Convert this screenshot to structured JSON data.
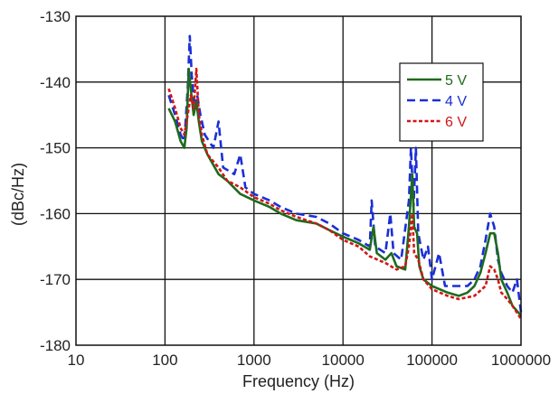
{
  "chart_data": {
    "type": "line",
    "xlabel": "Frequency (Hz)",
    "ylabel": "(dBc/Hz)",
    "x_scale": "log",
    "xlim": [
      10,
      1000000
    ],
    "ylim": [
      -180,
      -130
    ],
    "x_ticks": [
      10,
      100,
      1000,
      10000,
      100000,
      1000000
    ],
    "x_tick_labels": [
      "10",
      "100",
      "1000",
      "10000",
      "100000",
      "1000000"
    ],
    "y_ticks": [
      -130,
      -140,
      -150,
      -160,
      -170,
      -180
    ],
    "y_tick_labels": [
      "-130",
      "-140",
      "-150",
      "-160",
      "-170",
      "-180"
    ],
    "grid": "major, both axes",
    "legend_position": "top-right",
    "series": [
      {
        "name": "5 V",
        "color": "#1e6b1e",
        "dash": "solid",
        "points": [
          [
            110,
            -144
          ],
          [
            130,
            -146
          ],
          [
            150,
            -149
          ],
          [
            165,
            -150
          ],
          [
            175,
            -147
          ],
          [
            185,
            -138
          ],
          [
            195,
            -141
          ],
          [
            210,
            -145
          ],
          [
            225,
            -143
          ],
          [
            240,
            -146
          ],
          [
            260,
            -149
          ],
          [
            300,
            -151
          ],
          [
            400,
            -154
          ],
          [
            500,
            -155
          ],
          [
            700,
            -157
          ],
          [
            1000,
            -158
          ],
          [
            1500,
            -159
          ],
          [
            2000,
            -160
          ],
          [
            3000,
            -161
          ],
          [
            5000,
            -161.5
          ],
          [
            7000,
            -162.5
          ],
          [
            10000,
            -163.5
          ],
          [
            15000,
            -164.5
          ],
          [
            20000,
            -165.5
          ],
          [
            22000,
            -162
          ],
          [
            24000,
            -166
          ],
          [
            30000,
            -167
          ],
          [
            35000,
            -166
          ],
          [
            40000,
            -168
          ],
          [
            50000,
            -168.5
          ],
          [
            55000,
            -162
          ],
          [
            60000,
            -154
          ],
          [
            63000,
            -162
          ],
          [
            68000,
            -163
          ],
          [
            72000,
            -168
          ],
          [
            80000,
            -170
          ],
          [
            100000,
            -171
          ],
          [
            150000,
            -172
          ],
          [
            200000,
            -172.5
          ],
          [
            250000,
            -172
          ],
          [
            300000,
            -171
          ],
          [
            350000,
            -169
          ],
          [
            400000,
            -166
          ],
          [
            450000,
            -163
          ],
          [
            500000,
            -163
          ],
          [
            550000,
            -166
          ],
          [
            600000,
            -170
          ],
          [
            700000,
            -172
          ],
          [
            800000,
            -174
          ],
          [
            1000000,
            -175.5
          ]
        ]
      },
      {
        "name": "4 V",
        "color": "#1a2fd6",
        "dash": "dashed",
        "points": [
          [
            110,
            -142
          ],
          [
            130,
            -145
          ],
          [
            150,
            -148
          ],
          [
            165,
            -149
          ],
          [
            180,
            -141
          ],
          [
            190,
            -133
          ],
          [
            200,
            -139
          ],
          [
            215,
            -144
          ],
          [
            230,
            -142
          ],
          [
            250,
            -145
          ],
          [
            280,
            -148
          ],
          [
            350,
            -150
          ],
          [
            400,
            -146
          ],
          [
            450,
            -153
          ],
          [
            600,
            -154
          ],
          [
            700,
            -151
          ],
          [
            800,
            -156
          ],
          [
            1000,
            -157
          ],
          [
            1500,
            -158
          ],
          [
            2000,
            -159
          ],
          [
            3000,
            -160
          ],
          [
            5000,
            -160.5
          ],
          [
            7000,
            -161.5
          ],
          [
            10000,
            -163
          ],
          [
            15000,
            -164
          ],
          [
            20000,
            -165
          ],
          [
            21000,
            -158
          ],
          [
            23000,
            -165
          ],
          [
            30000,
            -166
          ],
          [
            34000,
            -160
          ],
          [
            37000,
            -166
          ],
          [
            45000,
            -167
          ],
          [
            55000,
            -158
          ],
          [
            58000,
            -150
          ],
          [
            62000,
            -159
          ],
          [
            66000,
            -150
          ],
          [
            70000,
            -163
          ],
          [
            80000,
            -167
          ],
          [
            90000,
            -165
          ],
          [
            100000,
            -170
          ],
          [
            120000,
            -166
          ],
          [
            140000,
            -171
          ],
          [
            200000,
            -171
          ],
          [
            250000,
            -171
          ],
          [
            300000,
            -170
          ],
          [
            350000,
            -168
          ],
          [
            400000,
            -164
          ],
          [
            450000,
            -160
          ],
          [
            500000,
            -162
          ],
          [
            550000,
            -167
          ],
          [
            600000,
            -169
          ],
          [
            700000,
            -171
          ],
          [
            800000,
            -172
          ],
          [
            900000,
            -170
          ],
          [
            1000000,
            -175
          ]
        ]
      },
      {
        "name": "6 V",
        "color": "#d11616",
        "dash": "dotted",
        "points": [
          [
            110,
            -141
          ],
          [
            130,
            -144
          ],
          [
            150,
            -147
          ],
          [
            165,
            -148
          ],
          [
            180,
            -145
          ],
          [
            195,
            -142
          ],
          [
            210,
            -144
          ],
          [
            225,
            -138
          ],
          [
            240,
            -145
          ],
          [
            260,
            -148
          ],
          [
            300,
            -151
          ],
          [
            400,
            -153
          ],
          [
            500,
            -155
          ],
          [
            700,
            -156
          ],
          [
            1000,
            -157.5
          ],
          [
            1500,
            -158.5
          ],
          [
            2000,
            -159.5
          ],
          [
            3000,
            -160.5
          ],
          [
            5000,
            -161.5
          ],
          [
            7000,
            -162.5
          ],
          [
            10000,
            -164
          ],
          [
            15000,
            -165
          ],
          [
            20000,
            -166.5
          ],
          [
            30000,
            -167.5
          ],
          [
            40000,
            -168.5
          ],
          [
            50000,
            -168
          ],
          [
            55000,
            -165
          ],
          [
            60000,
            -160
          ],
          [
            63000,
            -166
          ],
          [
            70000,
            -167
          ],
          [
            80000,
            -170
          ],
          [
            100000,
            -171.5
          ],
          [
            150000,
            -172.5
          ],
          [
            200000,
            -173
          ],
          [
            300000,
            -172.5
          ],
          [
            400000,
            -171
          ],
          [
            450000,
            -168
          ],
          [
            500000,
            -168.5
          ],
          [
            550000,
            -170
          ],
          [
            600000,
            -172
          ],
          [
            700000,
            -173
          ],
          [
            800000,
            -174
          ],
          [
            1000000,
            -176
          ]
        ]
      }
    ]
  }
}
